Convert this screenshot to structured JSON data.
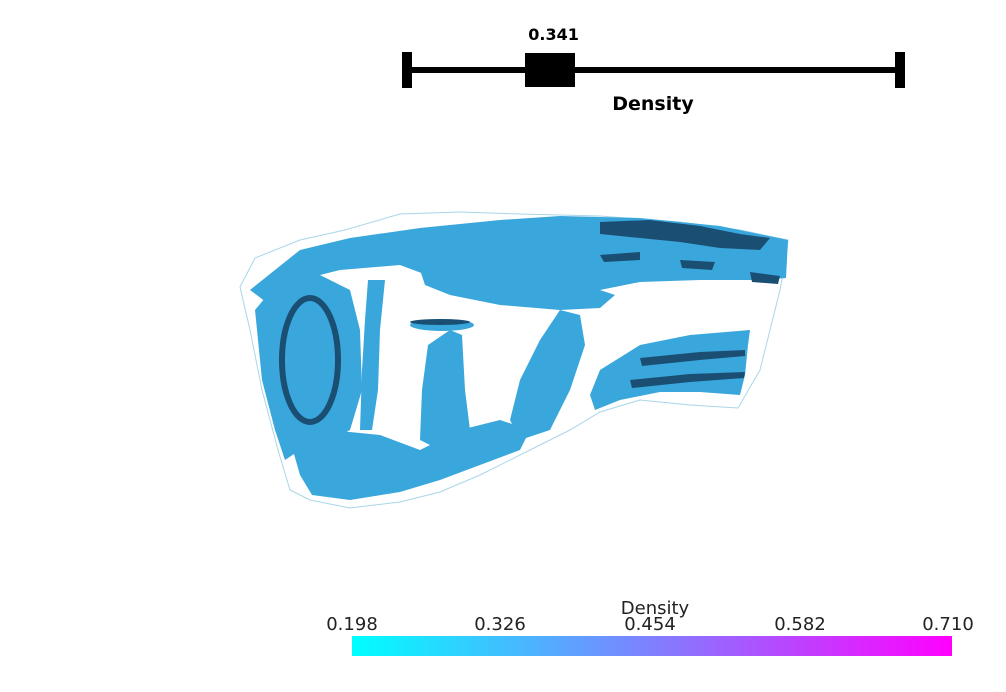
{
  "slider": {
    "value_text": "0.341",
    "label": "Density",
    "value_fraction": 0.288
  },
  "colorbar": {
    "title": "Density",
    "ticks": [
      "0.198",
      "0.326",
      "0.454",
      "0.582",
      "0.710"
    ],
    "colors": {
      "min": "#00ffff",
      "max": "#ff00ff"
    }
  },
  "surface": {
    "fill_color": "#3aa7dc",
    "shadow_color": "#1a4f73",
    "outline_color": "#a9d6e8"
  }
}
